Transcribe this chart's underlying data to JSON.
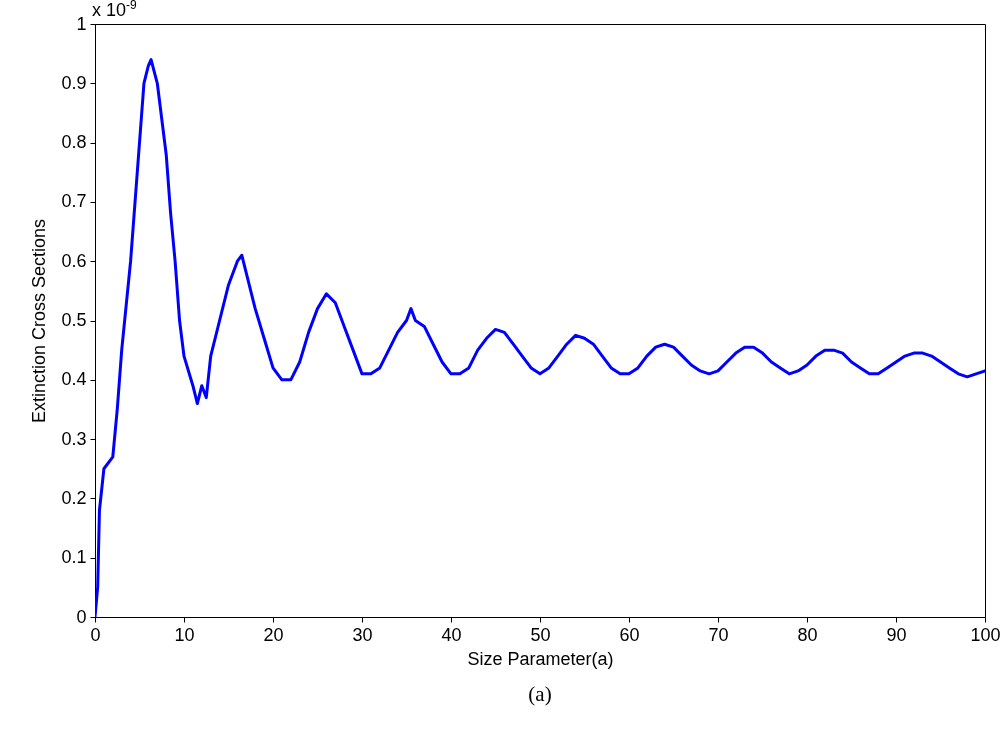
{
  "chart_data": {
    "type": "line",
    "xlabel": "Size Parameter(a)",
    "ylabel": "Extinction Cross Sections",
    "annotations": [
      "x 10$^{-9}$",
      "(a)"
    ],
    "xlim": [
      0,
      100
    ],
    "xticks": [
      0,
      10,
      20,
      30,
      40,
      50,
      60,
      70,
      80,
      90,
      100
    ],
    "ylim": [
      0,
      1
    ],
    "yticks": [
      0,
      0.1,
      0.2,
      0.3,
      0.4,
      0.5,
      0.6,
      0.7,
      0.8,
      0.9,
      1
    ],
    "grid": false,
    "marker": "none",
    "line_style": "solid",
    "series": [
      {
        "color": "#0000ff",
        "x": [
          0,
          0.3,
          0.5,
          1,
          2,
          2.5,
          3,
          4,
          5,
          5.5,
          6,
          6.3,
          7,
          8,
          8.5,
          9,
          9.5,
          10,
          11,
          11.5,
          12,
          12.5,
          13,
          14,
          15,
          16,
          16.5,
          17,
          18,
          19,
          20,
          21,
          22,
          23,
          24,
          25,
          26,
          27,
          28,
          29,
          30,
          31,
          32,
          33,
          34,
          35,
          35.5,
          36,
          37,
          38,
          39,
          40,
          41,
          42,
          43,
          44,
          45,
          46,
          47,
          48,
          49,
          50,
          51,
          52,
          53,
          54,
          55,
          56,
          57,
          58,
          59,
          60,
          61,
          62,
          63,
          64,
          65,
          66,
          67,
          68,
          69,
          70,
          71,
          72,
          73,
          74,
          75,
          76,
          77,
          78,
          79,
          80,
          81,
          82,
          83,
          84,
          85,
          86,
          87,
          88,
          89,
          90,
          91,
          92,
          93,
          94,
          95,
          96,
          97,
          98,
          99,
          100
        ],
        "values": [
          0,
          0.05,
          0.18,
          0.25,
          0.27,
          0.35,
          0.45,
          0.6,
          0.8,
          0.9,
          0.93,
          0.94,
          0.9,
          0.78,
          0.68,
          0.6,
          0.5,
          0.44,
          0.39,
          0.36,
          0.39,
          0.37,
          0.44,
          0.5,
          0.56,
          0.6,
          0.61,
          0.58,
          0.52,
          0.47,
          0.42,
          0.4,
          0.4,
          0.43,
          0.48,
          0.52,
          0.545,
          0.53,
          0.49,
          0.45,
          0.41,
          0.41,
          0.42,
          0.45,
          0.48,
          0.5,
          0.52,
          0.5,
          0.49,
          0.46,
          0.43,
          0.41,
          0.41,
          0.42,
          0.45,
          0.47,
          0.485,
          0.48,
          0.46,
          0.44,
          0.42,
          0.41,
          0.42,
          0.44,
          0.46,
          0.475,
          0.47,
          0.46,
          0.44,
          0.42,
          0.41,
          0.41,
          0.42,
          0.44,
          0.455,
          0.46,
          0.455,
          0.44,
          0.425,
          0.415,
          0.41,
          0.415,
          0.43,
          0.445,
          0.455,
          0.455,
          0.445,
          0.43,
          0.42,
          0.41,
          0.415,
          0.425,
          0.44,
          0.45,
          0.45,
          0.445,
          0.43,
          0.42,
          0.41,
          0.41,
          0.42,
          0.43,
          0.44,
          0.445,
          0.445,
          0.44,
          0.43,
          0.42,
          0.41,
          0.405,
          0.41,
          0.415
        ]
      }
    ]
  }
}
